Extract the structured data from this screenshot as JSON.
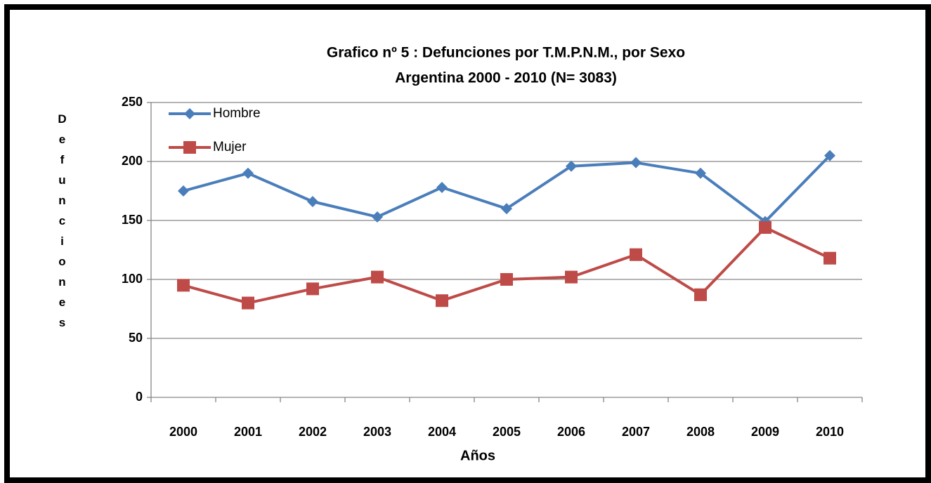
{
  "chart_data": {
    "type": "line",
    "title": "Grafico nº 5 :  Defunciones por  T.M.P.N.M., por Sexo",
    "subtitle": "Argentina 2000 - 2010 (N= 3083)",
    "x_label": "Años",
    "y_label": "Defunciones",
    "categories": [
      "2000",
      "2001",
      "2002",
      "2003",
      "2004",
      "2005",
      "2006",
      "2007",
      "2008",
      "2009",
      "2010"
    ],
    "series": [
      {
        "name": "Hombre",
        "color": "#4a7ebb",
        "marker": "diamond",
        "values": [
          175,
          190,
          166,
          153,
          178,
          160,
          196,
          199,
          190,
          149,
          205
        ]
      },
      {
        "name": "Mujer",
        "color": "#be4b48",
        "marker": "square",
        "values": [
          95,
          80,
          92,
          102,
          82,
          100,
          102,
          121,
          87,
          144,
          118
        ]
      }
    ],
    "ylim": [
      0,
      250
    ],
    "yticks": [
      0,
      50,
      100,
      150,
      200,
      250
    ],
    "grid": true,
    "legend": "top-left"
  }
}
